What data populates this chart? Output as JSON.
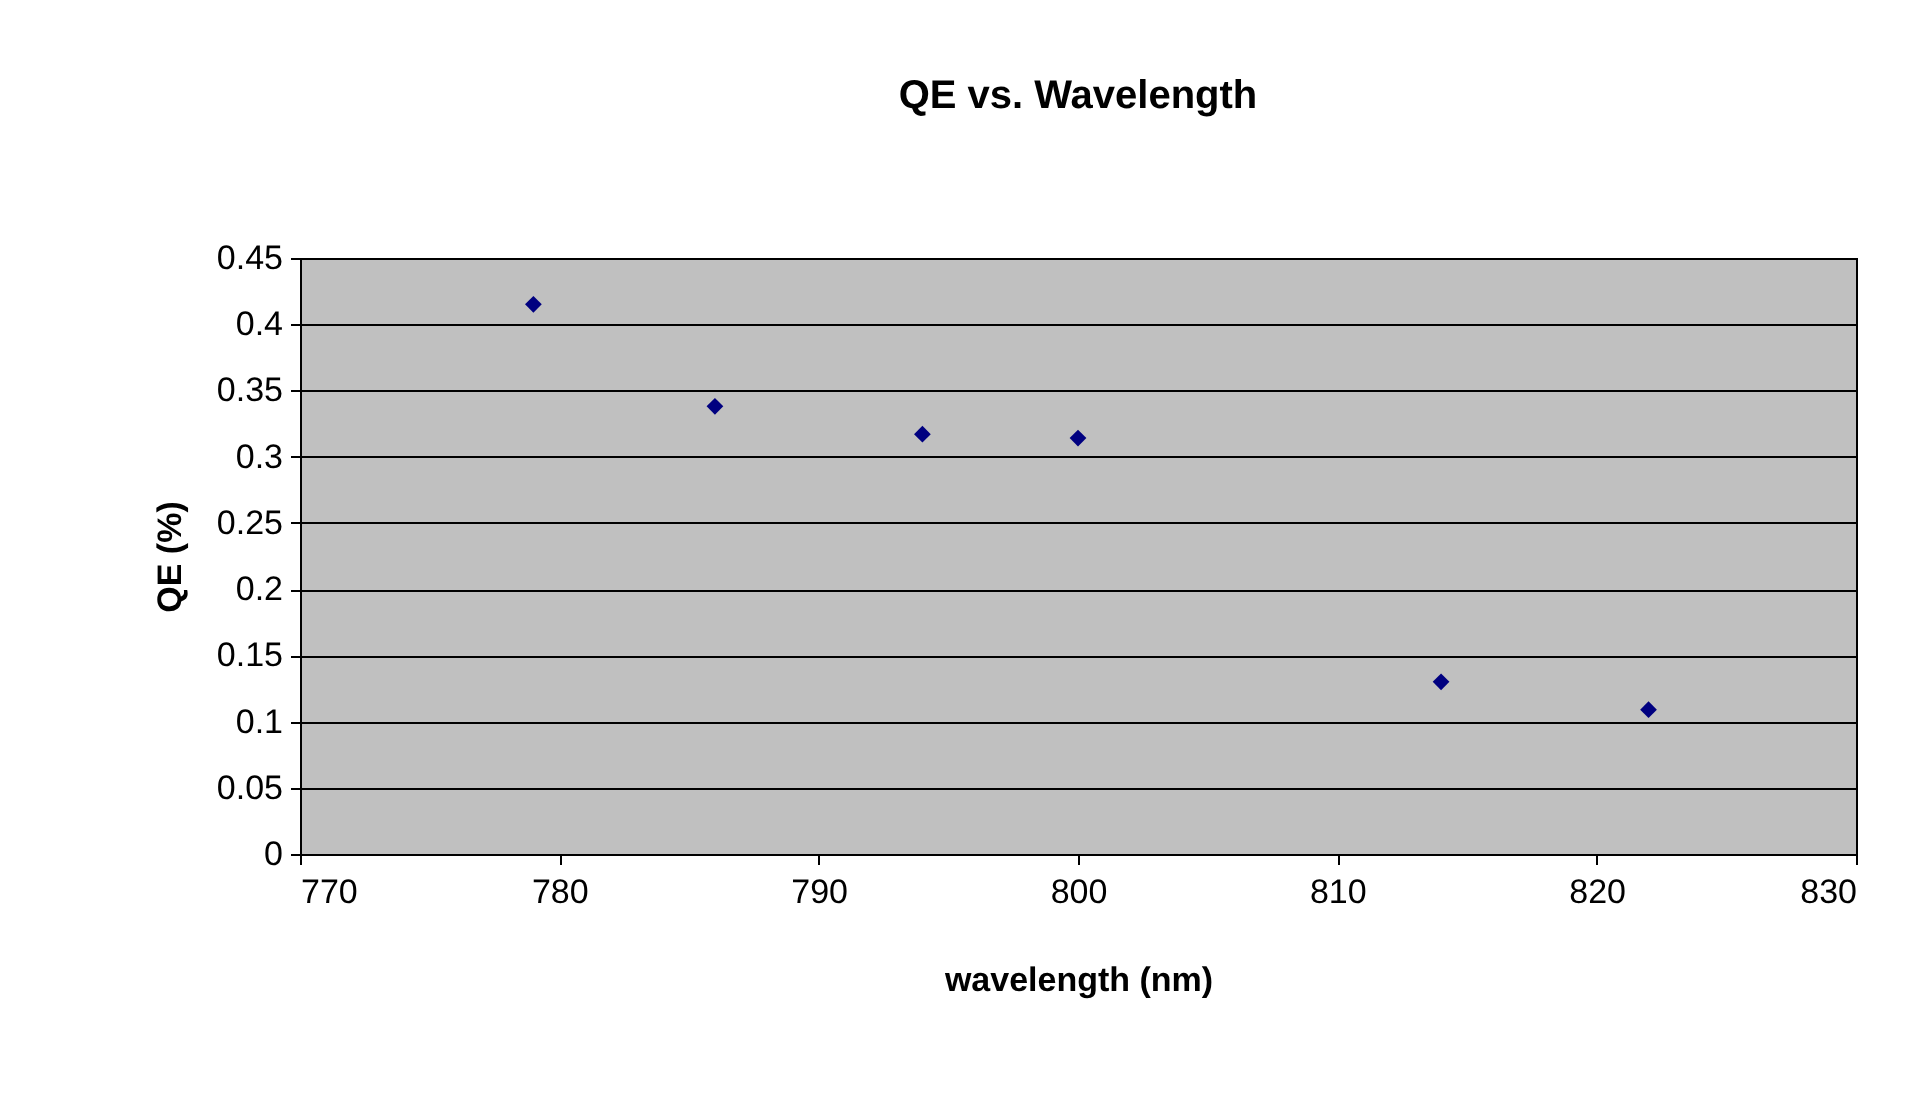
{
  "chart_data": {
    "type": "scatter",
    "title": "QE vs. Wavelength",
    "xlabel": "wavelength (nm)",
    "ylabel": "QE (%)",
    "x": [
      779,
      786,
      794,
      800,
      814,
      822
    ],
    "series": [
      {
        "color": "#000080",
        "values": [
          0.415,
          0.338,
          0.317,
          0.314,
          0.13,
          0.109
        ]
      }
    ],
    "xlim": [
      770,
      830
    ],
    "xticks": [
      770,
      780,
      790,
      800,
      810,
      820,
      830
    ],
    "ylim": [
      0,
      0.45
    ],
    "yticks": [
      0,
      0.05,
      0.1,
      0.15,
      0.2,
      0.25,
      0.3,
      0.35,
      0.4,
      0.45
    ],
    "grid": "y",
    "marker": "diamond"
  }
}
